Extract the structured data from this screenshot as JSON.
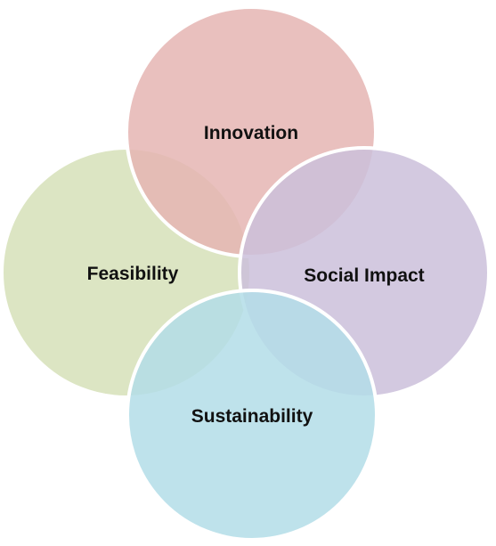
{
  "diagram": {
    "circles": [
      {
        "id": "innovation",
        "label": "Innovation",
        "color": "#E5B5B3"
      },
      {
        "id": "feasibility",
        "label": "Feasibility",
        "color": "#D6E0B8"
      },
      {
        "id": "social-impact",
        "label": "Social Impact",
        "color": "#CBBFDB"
      },
      {
        "id": "sustainability",
        "label": "Sustainability",
        "color": "#B3DDE8"
      }
    ],
    "stroke_color": "#FFFFFF",
    "overlap_opacity": 0.85
  }
}
